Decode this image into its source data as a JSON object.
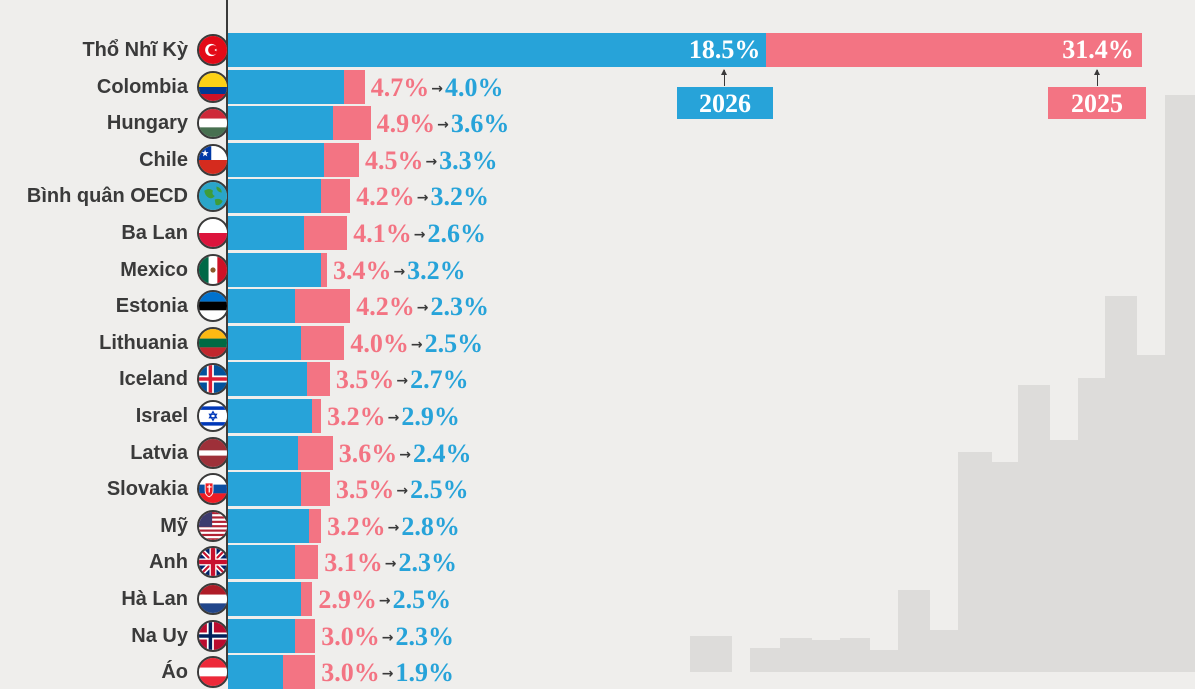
{
  "chart_data": {
    "type": "bar",
    "orientation": "horizontal",
    "categories": [
      "Thổ Nhĩ Kỳ",
      "Colombia",
      "Hungary",
      "Chile",
      "Bình quân OECD",
      "Ba Lan",
      "Mexico",
      "Estonia",
      "Lithuania",
      "Iceland",
      "Israel",
      "Latvia",
      "Slovakia",
      "Mỹ",
      "Anh",
      "Hà Lan",
      "Na Uy",
      "Áo"
    ],
    "series": [
      {
        "name": "2025",
        "color": "#f37483",
        "values": [
          31.4,
          4.7,
          4.9,
          4.5,
          4.2,
          4.1,
          3.4,
          4.2,
          4.0,
          3.5,
          3.2,
          3.6,
          3.5,
          3.2,
          3.1,
          2.9,
          3.0,
          3.0
        ],
        "labels": [
          "31.4%",
          "4.7%",
          "4.9%",
          "4.5%",
          "4.2%",
          "4.1%",
          "3.4%",
          "4.2%",
          "4.0%",
          "3.5%",
          "3.2%",
          "3.6%",
          "3.5%",
          "3.2%",
          "3.1%",
          "2.9%",
          "3.0%",
          "3.0%"
        ]
      },
      {
        "name": "2026",
        "color": "#27a3d9",
        "values": [
          18.5,
          4.0,
          3.6,
          3.3,
          3.2,
          2.6,
          3.2,
          2.3,
          2.5,
          2.7,
          2.9,
          2.4,
          2.5,
          2.8,
          2.3,
          2.5,
          2.3,
          1.9
        ],
        "labels": [
          "18.5%",
          "4.0%",
          "3.6%",
          "3.3%",
          "3.2%",
          "2.6%",
          "3.2%",
          "2.3%",
          "2.5%",
          "2.7%",
          "2.9%",
          "2.4%",
          "2.5%",
          "2.8%",
          "2.3%",
          "2.5%",
          "2.3%",
          "1.9%"
        ]
      }
    ],
    "arrow_symbol": "→",
    "legend": {
      "label_2026": "2026",
      "label_2025": "2025",
      "placement": "top-right"
    },
    "flags": [
      "turkey-flag-icon",
      "colombia-flag-icon",
      "hungary-flag-icon",
      "chile-flag-icon",
      "globe-icon",
      "poland-flag-icon",
      "mexico-flag-icon",
      "estonia-flag-icon",
      "lithuania-flag-icon",
      "iceland-flag-icon",
      "israel-flag-icon",
      "latvia-flag-icon",
      "slovakia-flag-icon",
      "usa-flag-icon",
      "uk-flag-icon",
      "netherlands-flag-icon",
      "norway-flag-icon",
      "austria-flag-icon"
    ],
    "colors": {
      "bar_2026": "#27a3d9",
      "bar_2025": "#f37483",
      "text": "#3a3a3a",
      "background": "#efeeec"
    }
  }
}
